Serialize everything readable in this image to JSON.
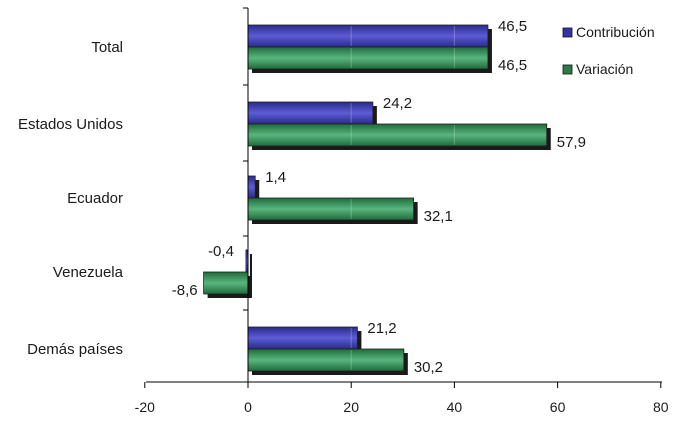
{
  "chart_data": {
    "type": "bar",
    "orientation": "horizontal",
    "categories": [
      "Total",
      "Estados Unidos",
      "Ecuador",
      "Venezuela",
      "Demás países"
    ],
    "series": [
      {
        "name": "Contribución",
        "values": [
          46.5,
          24.2,
          1.4,
          -0.4,
          21.2
        ],
        "labels": [
          "46,5",
          "24,2",
          "1,4",
          "-0,4",
          "21,2"
        ],
        "color": "#3333a3"
      },
      {
        "name": "Variación",
        "values": [
          46.5,
          57.9,
          32.1,
          -8.6,
          30.2
        ],
        "labels": [
          "46,5",
          "57,9",
          "32,1",
          "-8,6",
          "30,2"
        ],
        "color": "#2e7d4f"
      }
    ],
    "xlim": [
      -20,
      80
    ],
    "xticks": [
      -20,
      0,
      20,
      40,
      60,
      80
    ],
    "xtick_labels": [
      "-20",
      "0",
      "20",
      "40",
      "60",
      "80"
    ],
    "grid": false,
    "legend_position": "top-right",
    "title": "",
    "xlabel": "",
    "ylabel": ""
  }
}
